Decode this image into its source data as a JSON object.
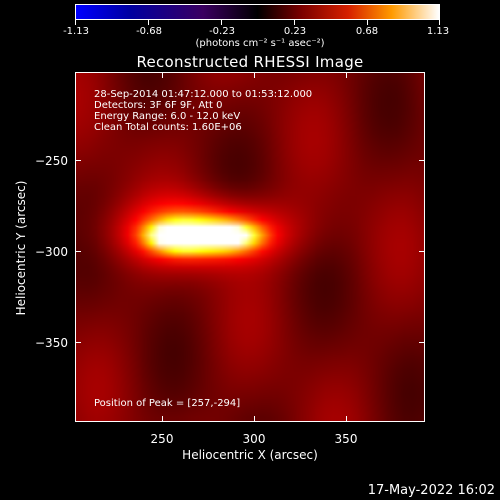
{
  "colorbar": {
    "ticks": [
      "-1.13",
      "-0.68",
      "-0.23",
      "0.23",
      "0.68",
      "1.13"
    ],
    "tick_values": [
      -1.13,
      -0.68,
      -0.23,
      0.23,
      0.68,
      1.13
    ],
    "range": [
      -1.13,
      1.13
    ],
    "unit_label": "(photons cm⁻² s⁻¹ asec⁻²)"
  },
  "chart_data": {
    "type": "heatmap",
    "title": "Reconstructed RHESSI Image",
    "xlabel": "Heliocentric X (arcsec)",
    "ylabel": "Heliocentric Y (arcsec)",
    "xlim": [
      200,
      390
    ],
    "ylim": [
      -395,
      -205
    ],
    "x_ticks": [
      250,
      300,
      350
    ],
    "y_ticks": [
      -250,
      -300,
      -350
    ],
    "x_tick_labels": [
      "250",
      "300",
      "350"
    ],
    "y_tick_labels": [
      "−250",
      "−300",
      "−350"
    ],
    "annotations": [
      "28-Sep-2014 01:47:12.000 to 01:53:12.000",
      "Detectors: 3F 6F 9F, Att 0",
      "Energy Range: 6.0 - 12.0 keV",
      "Clean    Total counts: 1.60E+06"
    ],
    "peak_label": "Position of Peak = [257,-294]",
    "peak": {
      "x": 257,
      "y": -294,
      "value": 1.13
    },
    "sources": [
      {
        "x": 257,
        "y": -294,
        "value": 1.0,
        "sigma_x": 11,
        "sigma_y": 5
      },
      {
        "x": 282,
        "y": -294,
        "value": 0.78,
        "sigma_x": 12,
        "sigma_y": 5
      },
      {
        "x": 270,
        "y": -292,
        "value": 0.5,
        "sigma_x": 30,
        "sigma_y": 12
      }
    ],
    "background_level": 0.22,
    "colormap": "hot"
  },
  "timestamp": "17-May-2022 16:02"
}
